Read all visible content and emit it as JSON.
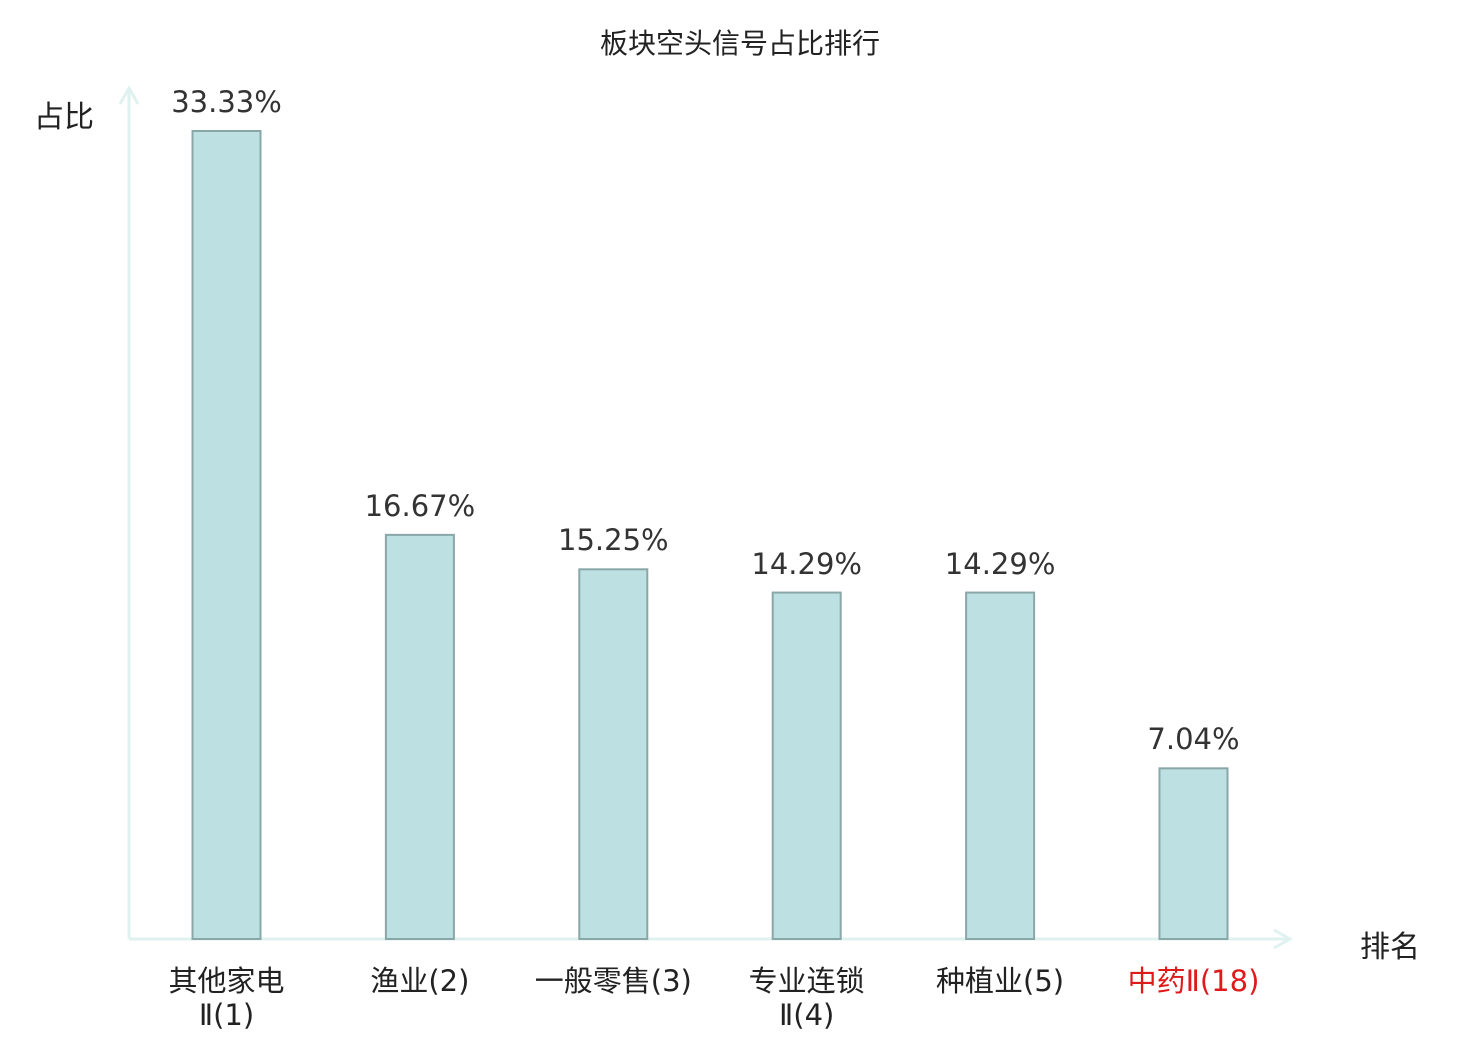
{
  "chart_data": {
    "type": "bar",
    "title": "板块空头信号占比排行",
    "ylabel": "占比",
    "xlabel": "排名",
    "categories": [
      "其他家电\nⅡ(1)",
      "渔业(2)",
      "一般零售(3)",
      "专业连锁\nⅡ(4)",
      "种植业(5)",
      "中药Ⅱ(18)"
    ],
    "values": [
      33.33,
      16.67,
      15.25,
      14.29,
      14.29,
      7.04
    ],
    "value_labels": [
      "33.33%",
      "16.67%",
      "15.25%",
      "14.29%",
      "14.29%",
      "7.04%"
    ],
    "ylim": [
      0,
      35
    ],
    "grid": false,
    "highlight_index": 5
  },
  "colors": {
    "bar_fill": "#bde0e2",
    "bar_stroke": "#8aa7a8",
    "axis": "#e0f2ef",
    "text": "#222222",
    "highlight_text": "#e0191a"
  }
}
